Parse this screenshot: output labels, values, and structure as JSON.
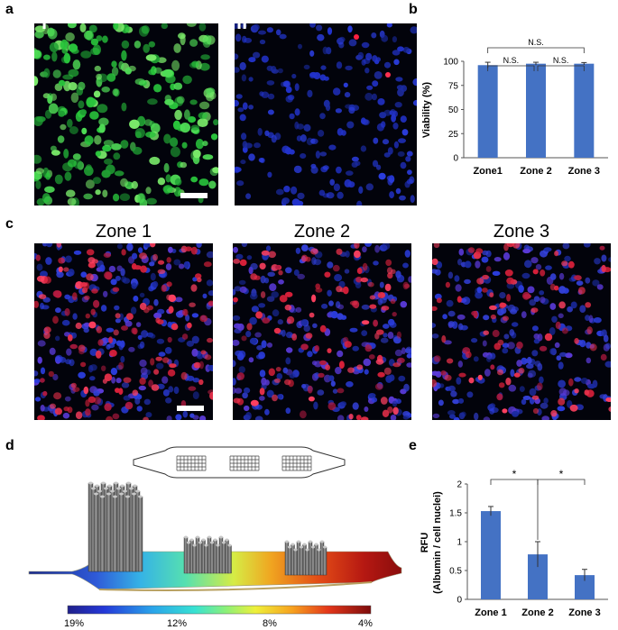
{
  "panel_labels": {
    "a": "a",
    "b": "b",
    "c": "c",
    "d": "d",
    "e": "e"
  },
  "roman": {
    "i": "i",
    "ii": "ii"
  },
  "zone_titles": [
    "Zone 1",
    "Zone 2",
    "Zone 3"
  ],
  "colorbar_ticks": [
    "19%",
    "12%",
    "8%",
    "4%"
  ],
  "colors": {
    "bar": "#4472c4",
    "live_stain": "#29c43c",
    "nuclei": "#2233cc",
    "dead_stain": "#e0202a",
    "albumin": "#d8203a"
  },
  "chart_data": [
    {
      "type": "bar",
      "categories": [
        "Zone1",
        "Zone 2",
        "Zone 3"
      ],
      "values": [
        96,
        97.5,
        97.5
      ],
      "errors": [
        3,
        1.5,
        1.2
      ],
      "ylabel": "Viability (%)",
      "ylim": [
        0,
        100
      ],
      "yticks": [
        "0",
        "25",
        "50",
        "75",
        "100"
      ],
      "significance": [
        "N.S.",
        "N.S.",
        "N.S."
      ]
    },
    {
      "type": "bar",
      "categories": [
        "Zone 1",
        "Zone 2",
        "Zone 3"
      ],
      "values": [
        1.53,
        0.78,
        0.42
      ],
      "errors": [
        0.08,
        0.22,
        0.1
      ],
      "ylabel": "RFU",
      "ylabel2": "(Albumin / cell nuclei)",
      "ylim": [
        0,
        2
      ],
      "yticks": [
        "0",
        "0.5",
        "1",
        "1.5",
        "2"
      ],
      "significance": [
        "*",
        "*"
      ]
    }
  ]
}
